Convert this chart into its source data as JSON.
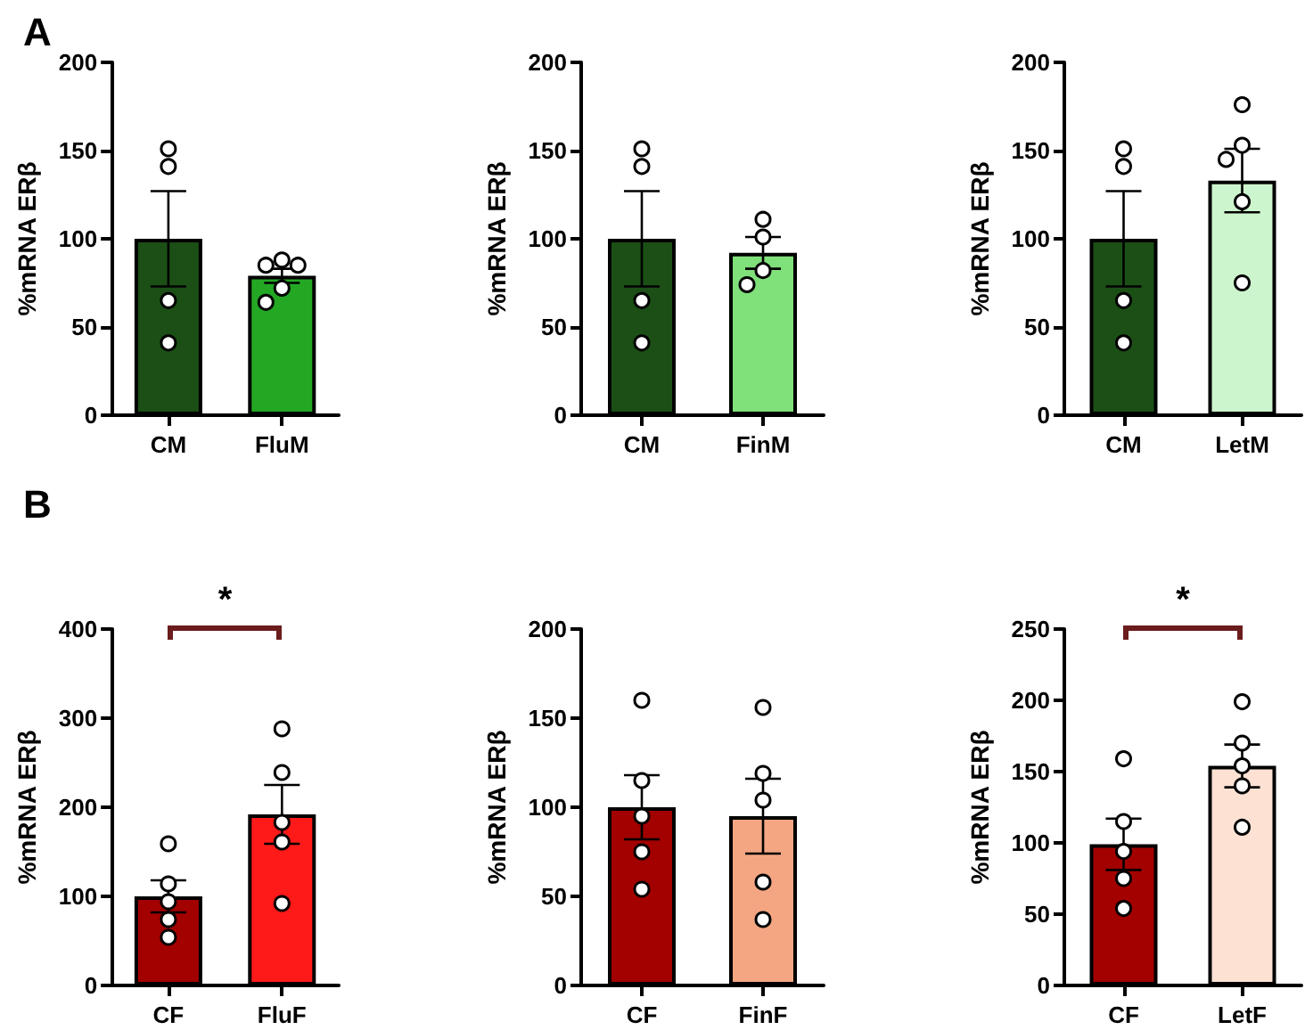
{
  "chart_data": [
    {
      "type": "bar",
      "title": "A",
      "ylabel": "%mRNA ERβ",
      "categories": [
        "CM",
        "FluM"
      ],
      "ylim": [
        0,
        200
      ],
      "yticks": [
        0,
        50,
        100,
        150,
        200
      ],
      "marker": "circle",
      "series": [
        {
          "type": "bar",
          "colors": [
            "#1b4f16",
            "#24a824"
          ],
          "values": [
            100,
            79
          ],
          "errors": [
            27,
            4
          ]
        },
        {
          "type": "scatter",
          "color": "#ffffff",
          "x": [
            "CM",
            "CM",
            "CM",
            "CM",
            "FluM",
            "FluM",
            "FluM",
            "FluM",
            "FluM"
          ],
          "values": [
            151,
            141,
            65,
            41,
            88,
            85,
            85,
            72,
            64
          ]
        }
      ]
    },
    {
      "type": "bar",
      "ylabel": "%mRNA ERβ",
      "categories": [
        "CM",
        "FinM"
      ],
      "ylim": [
        0,
        200
      ],
      "yticks": [
        0,
        50,
        100,
        150,
        200
      ],
      "marker": "circle",
      "series": [
        {
          "type": "bar",
          "colors": [
            "#1b4f16",
            "#80e07a"
          ],
          "values": [
            100,
            92
          ],
          "errors": [
            27,
            9
          ]
        },
        {
          "type": "scatter",
          "color": "#ffffff",
          "x": [
            "CM",
            "CM",
            "CM",
            "CM",
            "FinM",
            "FinM",
            "FinM",
            "FinM"
          ],
          "values": [
            151,
            141,
            65,
            41,
            111,
            101,
            82,
            74
          ]
        }
      ]
    },
    {
      "type": "bar",
      "ylabel": "%mRNA ERβ",
      "categories": [
        "CM",
        "LetM"
      ],
      "ylim": [
        0,
        200
      ],
      "yticks": [
        0,
        50,
        100,
        150,
        200
      ],
      "marker": "circle",
      "series": [
        {
          "type": "bar",
          "colors": [
            "#1b4f16",
            "#cdf5cd"
          ],
          "values": [
            100,
            133
          ],
          "errors": [
            27,
            18
          ]
        },
        {
          "type": "scatter",
          "color": "#ffffff",
          "x": [
            "CM",
            "CM",
            "CM",
            "CM",
            "LetM",
            "LetM",
            "LetM",
            "LetM",
            "LetM"
          ],
          "values": [
            151,
            141,
            65,
            41,
            176,
            153,
            145,
            121,
            75
          ]
        }
      ]
    },
    {
      "type": "bar",
      "title": "B",
      "ylabel": "%mRNA ERβ",
      "categories": [
        "CF",
        "FluF"
      ],
      "ylim": [
        0,
        400
      ],
      "yticks": [
        0,
        100,
        200,
        300,
        400
      ],
      "marker": "circle",
      "annotations": [
        "*"
      ],
      "series": [
        {
          "type": "bar",
          "colors": [
            "#a30000",
            "#ff1a1a"
          ],
          "values": [
            100,
            192
          ],
          "errors": [
            18,
            33
          ]
        },
        {
          "type": "scatter",
          "color": "#ffffff",
          "x": [
            "CF",
            "CF",
            "CF",
            "CF",
            "CF",
            "FluF",
            "FluF",
            "FluF",
            "FluF",
            "FluF"
          ],
          "values": [
            159,
            114,
            94,
            74,
            54,
            288,
            239,
            183,
            161,
            92
          ]
        }
      ]
    },
    {
      "type": "bar",
      "ylabel": "%mRNA ERβ",
      "categories": [
        "CF",
        "FinF"
      ],
      "ylim": [
        0,
        200
      ],
      "yticks": [
        0,
        50,
        100,
        150,
        200
      ],
      "marker": "circle",
      "series": [
        {
          "type": "bar",
          "colors": [
            "#a30000",
            "#f4a683"
          ],
          "values": [
            100,
            95
          ],
          "errors": [
            18,
            21
          ]
        },
        {
          "type": "scatter",
          "color": "#ffffff",
          "x": [
            "CF",
            "CF",
            "CF",
            "CF",
            "CF",
            "FinF",
            "FinF",
            "FinF",
            "FinF",
            "FinF"
          ],
          "values": [
            160,
            115,
            95,
            75,
            54,
            156,
            119,
            104,
            58,
            37
          ]
        }
      ]
    },
    {
      "type": "bar",
      "ylabel": "%mRNA ERβ",
      "categories": [
        "CF",
        "LetF"
      ],
      "ylim": [
        0,
        250
      ],
      "yticks": [
        0,
        50,
        100,
        150,
        200,
        250
      ],
      "marker": "circle",
      "annotations": [
        "*"
      ],
      "series": [
        {
          "type": "bar",
          "colors": [
            "#a30000",
            "#fde2d4"
          ],
          "values": [
            99,
            154
          ],
          "errors": [
            18,
            15
          ]
        },
        {
          "type": "scatter",
          "color": "#ffffff",
          "x": [
            "CF",
            "CF",
            "CF",
            "CF",
            "CF",
            "LetF",
            "LetF",
            "LetF",
            "LetF",
            "LetF"
          ],
          "values": [
            159,
            115,
            94,
            75,
            54,
            199,
            170,
            154,
            140,
            111
          ]
        }
      ]
    }
  ]
}
